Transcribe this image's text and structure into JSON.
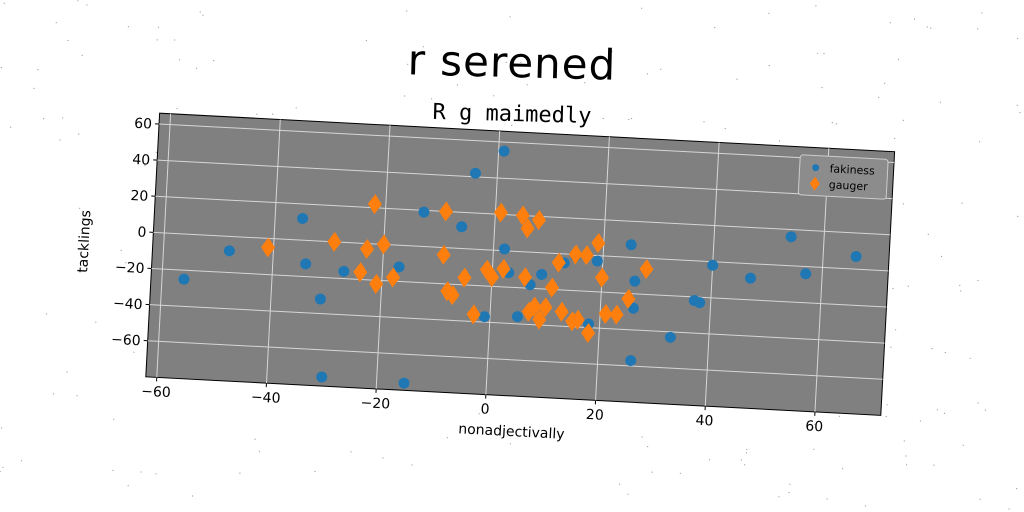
{
  "chart_data": {
    "type": "scatter",
    "title": "r serened",
    "subtitle": "R g maimedly",
    "xlabel": "nonadjectivally",
    "ylabel": "tacklings",
    "xlim": [
      -62,
      72
    ],
    "ylim": [
      -80,
      66
    ],
    "xticks": [
      -60,
      -40,
      -20,
      0,
      20,
      40,
      60
    ],
    "yticks": [
      -60,
      -40,
      -20,
      0,
      20,
      40,
      60
    ],
    "xtick_labels": [
      "−60",
      "−40",
      "−20",
      "0",
      "20",
      "40",
      "60"
    ],
    "ytick_labels": [
      "−60",
      "−40",
      "−20",
      "0",
      "20",
      "40",
      "60"
    ],
    "grid": true,
    "legend_position": "top-right",
    "plot_background": "#808080",
    "series": [
      {
        "name": "fakiness",
        "marker": "circle",
        "color": "#1f77b4",
        "points": [
          [
            -56,
            -25
          ],
          [
            -48,
            -8
          ],
          [
            -35,
            12
          ],
          [
            -34,
            -13
          ],
          [
            -31,
            -32
          ],
          [
            -30,
            -75
          ],
          [
            -27,
            -16
          ],
          [
            -17,
            -12
          ],
          [
            -15,
            -76
          ],
          [
            -13,
            19
          ],
          [
            -6,
            12
          ],
          [
            -4,
            42
          ],
          [
            -1,
            -37
          ],
          [
            1,
            55
          ],
          [
            2,
            1
          ],
          [
            3,
            -12
          ],
          [
            5,
            -36
          ],
          [
            7,
            -18
          ],
          [
            9,
            -12
          ],
          [
            13,
            -5
          ],
          [
            15,
            -1
          ],
          [
            18,
            -38
          ],
          [
            19,
            -3
          ],
          [
            25,
            7
          ],
          [
            26,
            -13
          ],
          [
            26,
            -28
          ],
          [
            26,
            -57
          ],
          [
            33,
            -43
          ],
          [
            37,
            -22
          ],
          [
            38,
            -23
          ],
          [
            40,
            -2
          ],
          [
            47,
            -8
          ],
          [
            54,
            16
          ],
          [
            57,
            -4
          ],
          [
            66,
            7
          ]
        ]
      },
      {
        "name": "gauger",
        "marker": "diamond",
        "color": "#ff7f0e",
        "points": [
          [
            -41,
            -5
          ],
          [
            -29,
            0
          ],
          [
            -24,
            -16
          ],
          [
            -23,
            -3
          ],
          [
            -22,
            22
          ],
          [
            -21,
            -22
          ],
          [
            -20,
            0
          ],
          [
            -18,
            -18
          ],
          [
            -9,
            20
          ],
          [
            -9,
            -4
          ],
          [
            -8,
            -24
          ],
          [
            -7,
            -26
          ],
          [
            -5,
            -16
          ],
          [
            -3,
            -36
          ],
          [
            -1,
            -11
          ],
          [
            0,
            -15
          ],
          [
            1,
            21
          ],
          [
            2,
            -10
          ],
          [
            5,
            20
          ],
          [
            6,
            13
          ],
          [
            6,
            -14
          ],
          [
            7,
            -33
          ],
          [
            8,
            18
          ],
          [
            8,
            -30
          ],
          [
            9,
            -37
          ],
          [
            10,
            -30
          ],
          [
            11,
            -19
          ],
          [
            12,
            -5
          ],
          [
            13,
            -32
          ],
          [
            15,
            0
          ],
          [
            15,
            -37
          ],
          [
            16,
            -36
          ],
          [
            17,
            0
          ],
          [
            18,
            -43
          ],
          [
            19,
            7
          ],
          [
            20,
            -12
          ],
          [
            21,
            -32
          ],
          [
            23,
            -32
          ],
          [
            25,
            -23
          ],
          [
            28,
            -6
          ]
        ]
      }
    ]
  }
}
